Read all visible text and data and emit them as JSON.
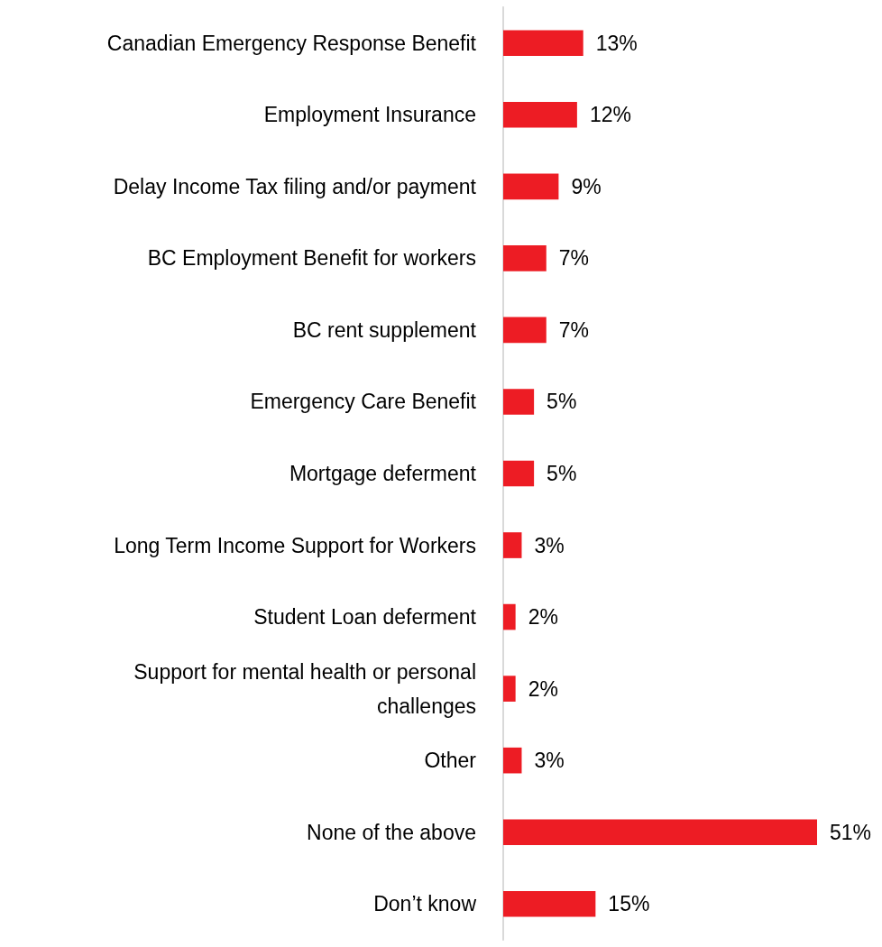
{
  "chart_data": {
    "type": "bar",
    "orientation": "horizontal",
    "categories": [
      "Canadian Emergency Response Benefit",
      "Employment Insurance",
      "Delay Income Tax filing and/or payment",
      "BC Employment Benefit for workers",
      "BC rent supplement",
      "Emergency Care Benefit",
      "Mortgage deferment",
      "Long Term Income Support for Workers",
      "Student Loan deferment",
      "Support for mental health or personal challenges",
      "Other",
      "None of the above",
      "Don’t know"
    ],
    "values": [
      13,
      12,
      9,
      7,
      7,
      5,
      5,
      3,
      2,
      2,
      3,
      51,
      15
    ],
    "value_labels": [
      "13%",
      "12%",
      "9%",
      "7%",
      "7%",
      "5%",
      "5%",
      "3%",
      "2%",
      "2%",
      "3%",
      "51%",
      "15%"
    ],
    "color": "#ed1c24"
  }
}
